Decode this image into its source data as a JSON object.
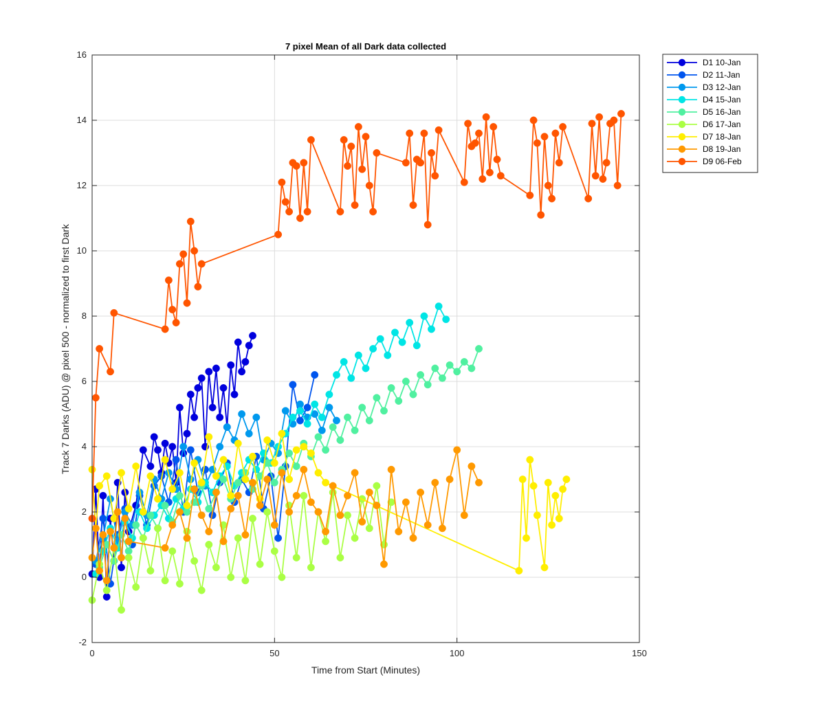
{
  "chart_data": {
    "type": "line",
    "title": "7 pixel Mean of all Dark data collected",
    "xlabel": "Time from Start (Minutes)",
    "ylabel": "Track 7 Darks (ADU) @ pixel 500 - normalized to first Dark",
    "xlim": [
      0,
      150
    ],
    "ylim": [
      -2,
      16
    ],
    "xticks": [
      "0",
      "50",
      "100",
      "150"
    ],
    "yticks": [
      "-2",
      "0",
      "2",
      "4",
      "6",
      "8",
      "10",
      "12",
      "14",
      "16"
    ],
    "grid": true,
    "legend_position": "outside top-right",
    "markers": "filled circles",
    "series": [
      {
        "name": "D1 10-Jan",
        "color": "#0000dd",
        "x": [
          0,
          1,
          2,
          3,
          4,
          5,
          6,
          7,
          8,
          9,
          10,
          12,
          14,
          16,
          17,
          18,
          19,
          20,
          21,
          22,
          23,
          24,
          25,
          26,
          27,
          28,
          29,
          30,
          31,
          32,
          33,
          34,
          35,
          36,
          37,
          38,
          39,
          40,
          41,
          42,
          43,
          44
        ],
        "y": [
          0.1,
          2.7,
          0.0,
          2.5,
          -0.6,
          1.8,
          0.5,
          2.9,
          0.3,
          2.6,
          1.4,
          2.2,
          3.9,
          3.4,
          4.3,
          3.9,
          3.2,
          4.1,
          3.5,
          4.0,
          2.9,
          5.2,
          3.8,
          4.4,
          5.6,
          4.9,
          5.8,
          6.1,
          4.0,
          6.3,
          5.2,
          6.4,
          4.9,
          5.8,
          4.6,
          6.5,
          5.6,
          7.2,
          6.3,
          6.6,
          7.1,
          7.4
        ]
      },
      {
        "name": "D2 11-Jan",
        "color": "#0055ee",
        "x": [
          1,
          3,
          5,
          7,
          9,
          11,
          13,
          15,
          17,
          19,
          21,
          23,
          25,
          27,
          29,
          31,
          33,
          35,
          37,
          39,
          41,
          43,
          45,
          47,
          49,
          51,
          53,
          55,
          57,
          59,
          61
        ],
        "y": [
          0.4,
          1.8,
          -0.2,
          1.3,
          2.1,
          1.0,
          2.5,
          1.6,
          2.8,
          3.1,
          2.3,
          3.6,
          2.0,
          3.9,
          2.6,
          3.3,
          1.9,
          2.9,
          3.5,
          2.3,
          3.0,
          2.6,
          3.7,
          2.1,
          3.1,
          1.2,
          3.4,
          5.9,
          4.8,
          5.2,
          6.2
        ]
      },
      {
        "name": "D3 12-Jan",
        "color": "#0099ee",
        "x": [
          1,
          3,
          5,
          7,
          9,
          11,
          13,
          15,
          17,
          19,
          21,
          23,
          25,
          27,
          29,
          31,
          33,
          35,
          37,
          39,
          41,
          43,
          45,
          47,
          49,
          51,
          53,
          55,
          57,
          59,
          61,
          63,
          65,
          67
        ],
        "y": [
          0.5,
          1.2,
          2.4,
          1.1,
          2.0,
          1.6,
          2.6,
          1.9,
          3.0,
          2.4,
          3.2,
          2.7,
          4.0,
          3.0,
          3.6,
          2.8,
          3.3,
          4.0,
          4.6,
          4.2,
          5.0,
          4.4,
          4.9,
          3.6,
          4.1,
          3.8,
          5.1,
          4.7,
          5.3,
          4.9,
          5.0,
          4.5,
          5.2,
          4.8
        ]
      },
      {
        "name": "D4 15-Jan",
        "color": "#00e5e5",
        "x": [
          1,
          3,
          5,
          7,
          9,
          11,
          13,
          15,
          17,
          19,
          21,
          23,
          25,
          27,
          29,
          31,
          33,
          35,
          37,
          39,
          41,
          43,
          45,
          47,
          49,
          51,
          53,
          55,
          57,
          59,
          61,
          63,
          65,
          67,
          69,
          71,
          73,
          75,
          77,
          79,
          81,
          83,
          85,
          87,
          89,
          91,
          93,
          95,
          97
        ],
        "y": [
          0.1,
          0.8,
          1.5,
          0.9,
          1.7,
          1.2,
          2.0,
          1.5,
          1.9,
          2.2,
          1.8,
          2.4,
          2.1,
          2.7,
          2.3,
          2.9,
          2.6,
          3.1,
          3.4,
          2.8,
          3.2,
          3.6,
          3.3,
          3.8,
          3.5,
          4.0,
          4.4,
          4.9,
          5.1,
          4.7,
          5.3,
          4.9,
          5.6,
          6.2,
          6.6,
          6.1,
          6.8,
          6.4,
          7.0,
          7.3,
          6.8,
          7.5,
          7.2,
          7.8,
          7.1,
          8.0,
          7.6,
          8.3,
          7.9
        ]
      },
      {
        "name": "D5 16-Jan",
        "color": "#50f0a0",
        "x": [
          2,
          4,
          6,
          8,
          10,
          12,
          14,
          16,
          18,
          20,
          22,
          24,
          26,
          28,
          30,
          32,
          34,
          36,
          38,
          40,
          42,
          44,
          46,
          48,
          50,
          52,
          54,
          56,
          58,
          60,
          62,
          64,
          66,
          68,
          70,
          72,
          74,
          76,
          78,
          80,
          82,
          84,
          86,
          88,
          90,
          92,
          94,
          96,
          98,
          100,
          102,
          104,
          106
        ],
        "y": [
          0.3,
          1.0,
          0.5,
          1.3,
          0.8,
          1.6,
          1.2,
          1.9,
          1.5,
          2.2,
          1.7,
          2.5,
          2.0,
          2.3,
          2.8,
          2.1,
          2.6,
          3.0,
          2.4,
          2.9,
          3.2,
          2.7,
          3.1,
          3.5,
          2.9,
          3.3,
          3.8,
          3.4,
          4.1,
          3.7,
          4.3,
          3.9,
          4.6,
          4.2,
          4.9,
          4.5,
          5.2,
          4.8,
          5.5,
          5.1,
          5.8,
          5.4,
          6.0,
          5.6,
          6.2,
          5.9,
          6.4,
          6.1,
          6.5,
          6.3,
          6.6,
          6.4,
          7.0
        ]
      },
      {
        "name": "D6 17-Jan",
        "color": "#aaff44",
        "x": [
          0,
          2,
          4,
          6,
          8,
          10,
          12,
          14,
          16,
          18,
          20,
          22,
          24,
          26,
          28,
          30,
          32,
          34,
          36,
          38,
          40,
          42,
          44,
          46,
          48,
          50,
          52,
          54,
          56,
          58,
          60,
          62,
          64,
          66,
          68,
          70,
          72,
          74,
          76,
          78,
          80,
          82
        ],
        "y": [
          -0.7,
          0.4,
          -0.4,
          0.9,
          -1.0,
          0.6,
          -0.3,
          1.2,
          0.2,
          1.5,
          -0.1,
          0.8,
          -0.2,
          1.4,
          0.5,
          -0.4,
          1.0,
          0.3,
          1.6,
          0.0,
          1.2,
          -0.1,
          1.8,
          0.4,
          2.0,
          0.8,
          0.0,
          2.2,
          0.6,
          2.5,
          0.3,
          2.0,
          1.1,
          2.6,
          0.6,
          1.9,
          1.2,
          2.4,
          1.5,
          2.8,
          1.0,
          2.3
        ]
      },
      {
        "name": "D7 18-Jan",
        "color": "#ffee00",
        "x": [
          0,
          1,
          2,
          4,
          6,
          8,
          10,
          12,
          14,
          16,
          18,
          20,
          22,
          24,
          26,
          28,
          30,
          32,
          34,
          36,
          38,
          40,
          42,
          44,
          46,
          48,
          50,
          52,
          54,
          56,
          58,
          60,
          62,
          64,
          117,
          118,
          119,
          120,
          121,
          122,
          124,
          125,
          126,
          127,
          128,
          129,
          130
        ],
        "y": [
          3.3,
          1.5,
          2.8,
          3.1,
          1.8,
          3.2,
          2.1,
          3.4,
          2.0,
          3.1,
          2.4,
          3.6,
          2.7,
          3.2,
          2.2,
          3.5,
          2.9,
          4.3,
          3.1,
          3.6,
          2.5,
          4.1,
          3.0,
          3.7,
          2.4,
          4.2,
          3.5,
          4.4,
          3.0,
          3.9,
          4.0,
          3.8,
          3.2,
          2.9,
          0.2,
          3.0,
          1.2,
          3.6,
          2.8,
          1.9,
          0.3,
          2.9,
          1.6,
          2.5,
          1.8,
          2.7,
          3.0
        ]
      },
      {
        "name": "D8 19-Jan",
        "color": "#ff9900",
        "x": [
          0,
          1,
          2,
          3,
          4,
          5,
          6,
          7,
          8,
          9,
          10,
          20,
          22,
          24,
          26,
          28,
          30,
          32,
          34,
          36,
          38,
          40,
          42,
          44,
          46,
          48,
          50,
          52,
          54,
          56,
          58,
          60,
          62,
          64,
          66,
          68,
          70,
          72,
          74,
          76,
          78,
          80,
          82,
          84,
          86,
          88,
          90,
          92,
          94,
          96,
          98,
          100,
          102,
          104,
          106
        ],
        "y": [
          0.6,
          1.5,
          0.2,
          1.3,
          -0.1,
          1.4,
          0.9,
          2.0,
          0.6,
          1.8,
          1.1,
          0.9,
          1.6,
          2.0,
          1.2,
          2.7,
          1.9,
          1.4,
          2.6,
          1.1,
          2.1,
          2.5,
          1.3,
          2.9,
          2.2,
          3.0,
          1.6,
          3.2,
          2.0,
          2.5,
          3.3,
          2.3,
          2.0,
          1.4,
          2.8,
          1.9,
          2.5,
          3.2,
          1.7,
          2.6,
          2.2,
          0.4,
          3.3,
          1.4,
          2.3,
          1.2,
          2.6,
          1.6,
          2.9,
          1.5,
          3.0,
          3.9,
          1.9,
          3.4,
          2.9
        ]
      },
      {
        "name": "D9 06-Feb",
        "color": "#ff5500",
        "x": [
          0,
          1,
          2,
          5,
          6,
          20,
          21,
          22,
          23,
          24,
          25,
          26,
          27,
          28,
          29,
          30,
          51,
          52,
          53,
          54,
          55,
          56,
          57,
          58,
          59,
          60,
          68,
          69,
          70,
          71,
          72,
          73,
          74,
          75,
          76,
          77,
          78,
          86,
          87,
          88,
          89,
          90,
          91,
          92,
          93,
          94,
          95,
          102,
          103,
          104,
          105,
          106,
          107,
          108,
          109,
          110,
          111,
          112,
          120,
          121,
          122,
          123,
          124,
          125,
          126,
          127,
          128,
          129,
          136,
          137,
          138,
          139,
          140,
          141,
          142,
          143,
          144,
          145
        ],
        "y": [
          1.8,
          5.5,
          7.0,
          6.3,
          8.1,
          7.6,
          9.1,
          8.2,
          7.8,
          9.6,
          9.9,
          8.4,
          10.9,
          10.0,
          8.9,
          9.6,
          10.5,
          12.1,
          11.5,
          11.2,
          12.7,
          12.6,
          11.0,
          12.7,
          11.2,
          13.4,
          11.2,
          13.4,
          12.6,
          13.2,
          11.4,
          13.8,
          12.5,
          13.5,
          12.0,
          11.2,
          13.0,
          12.7,
          13.6,
          11.4,
          12.8,
          12.7,
          13.6,
          10.8,
          13.0,
          12.3,
          13.7,
          12.1,
          13.9,
          13.2,
          13.3,
          13.6,
          12.2,
          14.1,
          12.4,
          13.8,
          12.8,
          12.3,
          11.7,
          14.0,
          13.3,
          11.1,
          13.5,
          12.0,
          11.6,
          13.6,
          12.7,
          13.8,
          11.6,
          13.9,
          12.3,
          14.1,
          12.2,
          12.7,
          13.9,
          14.0,
          12.0,
          14.2
        ]
      }
    ]
  }
}
